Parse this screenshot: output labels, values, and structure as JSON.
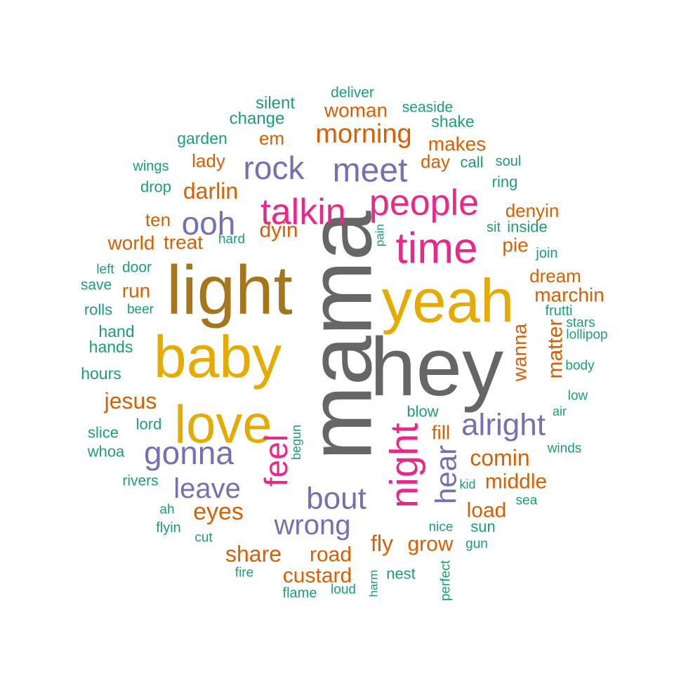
{
  "chart_data": {
    "type": "wordcloud",
    "colors": {
      "gray": "#666666",
      "gold": "#E6AB02",
      "brown": "#A6761D",
      "pink": "#E7298A",
      "purple": "#7570B3",
      "orange": "#D95F02",
      "teal": "#1B9E77"
    },
    "words": [
      {
        "text": "mama",
        "color": "gray",
        "rotated": true
      },
      {
        "text": "hey",
        "color": "gray"
      },
      {
        "text": "light",
        "color": "brown"
      },
      {
        "text": "yeah",
        "color": "gold"
      },
      {
        "text": "baby",
        "color": "gold"
      },
      {
        "text": "love",
        "color": "gold"
      },
      {
        "text": "time",
        "color": "pink"
      },
      {
        "text": "people",
        "color": "pink"
      },
      {
        "text": "talkin",
        "color": "pink"
      },
      {
        "text": "night",
        "color": "pink",
        "rotated": true
      },
      {
        "text": "feel",
        "color": "pink",
        "rotated": true
      },
      {
        "text": "meet",
        "color": "purple"
      },
      {
        "text": "rock",
        "color": "purple"
      },
      {
        "text": "ooh",
        "color": "purple"
      },
      {
        "text": "gonna",
        "color": "purple"
      },
      {
        "text": "alright",
        "color": "purple"
      },
      {
        "text": "bout",
        "color": "purple"
      },
      {
        "text": "leave",
        "color": "purple"
      },
      {
        "text": "wrong",
        "color": "purple"
      },
      {
        "text": "hear",
        "color": "purple",
        "rotated": true
      },
      {
        "text": "morning",
        "color": "orange"
      },
      {
        "text": "woman",
        "color": "orange"
      },
      {
        "text": "makes",
        "color": "orange"
      },
      {
        "text": "day",
        "color": "orange"
      },
      {
        "text": "em",
        "color": "orange"
      },
      {
        "text": "lady",
        "color": "orange"
      },
      {
        "text": "darlin",
        "color": "orange"
      },
      {
        "text": "ten",
        "color": "orange"
      },
      {
        "text": "world",
        "color": "orange"
      },
      {
        "text": "treat",
        "color": "orange"
      },
      {
        "text": "dyin",
        "color": "orange"
      },
      {
        "text": "denyin",
        "color": "orange"
      },
      {
        "text": "pie",
        "color": "orange"
      },
      {
        "text": "dream",
        "color": "orange"
      },
      {
        "text": "marchin",
        "color": "orange"
      },
      {
        "text": "run",
        "color": "orange"
      },
      {
        "text": "jesus",
        "color": "orange"
      },
      {
        "text": "fill",
        "color": "orange"
      },
      {
        "text": "comin",
        "color": "orange"
      },
      {
        "text": "middle",
        "color": "orange"
      },
      {
        "text": "load",
        "color": "orange"
      },
      {
        "text": "eyes",
        "color": "orange"
      },
      {
        "text": "share",
        "color": "orange"
      },
      {
        "text": "road",
        "color": "orange"
      },
      {
        "text": "fly",
        "color": "orange"
      },
      {
        "text": "grow",
        "color": "orange"
      },
      {
        "text": "custard",
        "color": "orange"
      },
      {
        "text": "wanna",
        "color": "orange",
        "rotated": true
      },
      {
        "text": "matter",
        "color": "orange",
        "rotated": true
      },
      {
        "text": "deliver",
        "color": "teal"
      },
      {
        "text": "silent",
        "color": "teal"
      },
      {
        "text": "seaside",
        "color": "teal"
      },
      {
        "text": "change",
        "color": "teal"
      },
      {
        "text": "shake",
        "color": "teal"
      },
      {
        "text": "garden",
        "color": "teal"
      },
      {
        "text": "wings",
        "color": "teal"
      },
      {
        "text": "call",
        "color": "teal"
      },
      {
        "text": "soul",
        "color": "teal"
      },
      {
        "text": "drop",
        "color": "teal"
      },
      {
        "text": "ring",
        "color": "teal"
      },
      {
        "text": "hard",
        "color": "teal"
      },
      {
        "text": "sit",
        "color": "teal"
      },
      {
        "text": "inside",
        "color": "teal"
      },
      {
        "text": "join",
        "color": "teal"
      },
      {
        "text": "left",
        "color": "teal"
      },
      {
        "text": "door",
        "color": "teal"
      },
      {
        "text": "save",
        "color": "teal"
      },
      {
        "text": "rolls",
        "color": "teal"
      },
      {
        "text": "beer",
        "color": "teal"
      },
      {
        "text": "frutti",
        "color": "teal"
      },
      {
        "text": "stars",
        "color": "teal"
      },
      {
        "text": "lollipop",
        "color": "teal"
      },
      {
        "text": "hand",
        "color": "teal"
      },
      {
        "text": "hands",
        "color": "teal"
      },
      {
        "text": "body",
        "color": "teal"
      },
      {
        "text": "hours",
        "color": "teal"
      },
      {
        "text": "low",
        "color": "teal"
      },
      {
        "text": "blow",
        "color": "teal"
      },
      {
        "text": "air",
        "color": "teal"
      },
      {
        "text": "lord",
        "color": "teal"
      },
      {
        "text": "slice",
        "color": "teal"
      },
      {
        "text": "whoa",
        "color": "teal"
      },
      {
        "text": "winds",
        "color": "teal"
      },
      {
        "text": "rivers",
        "color": "teal"
      },
      {
        "text": "kid",
        "color": "teal"
      },
      {
        "text": "sea",
        "color": "teal"
      },
      {
        "text": "ah",
        "color": "teal"
      },
      {
        "text": "flyin",
        "color": "teal"
      },
      {
        "text": "nice",
        "color": "teal"
      },
      {
        "text": "sun",
        "color": "teal"
      },
      {
        "text": "cut",
        "color": "teal"
      },
      {
        "text": "gun",
        "color": "teal"
      },
      {
        "text": "fire",
        "color": "teal"
      },
      {
        "text": "nest",
        "color": "teal"
      },
      {
        "text": "flame",
        "color": "teal"
      },
      {
        "text": "loud",
        "color": "teal"
      },
      {
        "text": "pain",
        "color": "teal",
        "rotated": true
      },
      {
        "text": "begun",
        "color": "teal",
        "rotated": true
      },
      {
        "text": "harm",
        "color": "teal",
        "rotated": true
      },
      {
        "text": "perfect",
        "color": "teal",
        "rotated": true
      }
    ]
  }
}
